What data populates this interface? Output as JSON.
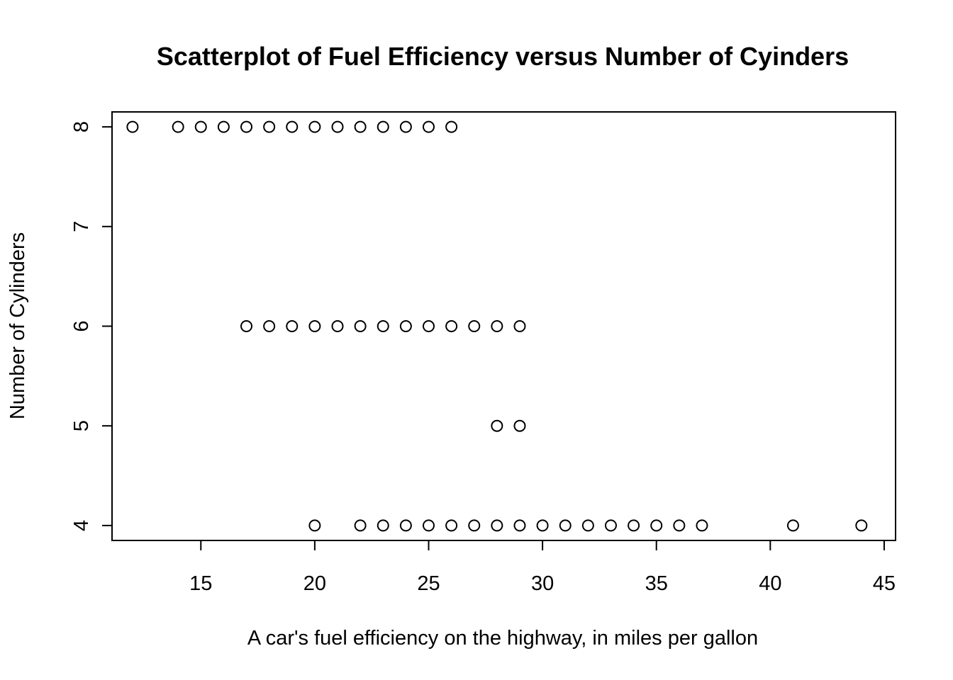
{
  "chart_data": {
    "type": "scatter",
    "title": "Scatterplot of Fuel Efficiency versus Number of Cyinders",
    "xlabel": "A car's fuel efficiency on the highway, in miles per gallon",
    "ylabel": "Number of Cylinders",
    "xlim": [
      11.1,
      45.5
    ],
    "ylim": [
      3.85,
      8.15
    ],
    "x_ticks": [
      15,
      20,
      25,
      30,
      35,
      40,
      45
    ],
    "y_ticks": [
      4,
      5,
      6,
      7,
      8
    ],
    "x_tick_labels": [
      "15",
      "20",
      "25",
      "30",
      "35",
      "40",
      "45"
    ],
    "y_tick_labels": [
      "4",
      "5",
      "6",
      "7",
      "8"
    ],
    "grid": false,
    "marker": "open-circle",
    "points": [
      {
        "x": 12,
        "y": 8
      },
      {
        "x": 14,
        "y": 8
      },
      {
        "x": 15,
        "y": 8
      },
      {
        "x": 16,
        "y": 8
      },
      {
        "x": 17,
        "y": 8
      },
      {
        "x": 18,
        "y": 8
      },
      {
        "x": 19,
        "y": 8
      },
      {
        "x": 20,
        "y": 8
      },
      {
        "x": 21,
        "y": 8
      },
      {
        "x": 22,
        "y": 8
      },
      {
        "x": 23,
        "y": 8
      },
      {
        "x": 24,
        "y": 8
      },
      {
        "x": 25,
        "y": 8
      },
      {
        "x": 26,
        "y": 8
      },
      {
        "x": 17,
        "y": 6
      },
      {
        "x": 18,
        "y": 6
      },
      {
        "x": 19,
        "y": 6
      },
      {
        "x": 20,
        "y": 6
      },
      {
        "x": 21,
        "y": 6
      },
      {
        "x": 22,
        "y": 6
      },
      {
        "x": 23,
        "y": 6
      },
      {
        "x": 24,
        "y": 6
      },
      {
        "x": 25,
        "y": 6
      },
      {
        "x": 26,
        "y": 6
      },
      {
        "x": 27,
        "y": 6
      },
      {
        "x": 28,
        "y": 6
      },
      {
        "x": 29,
        "y": 6
      },
      {
        "x": 28,
        "y": 5
      },
      {
        "x": 29,
        "y": 5
      },
      {
        "x": 20,
        "y": 4
      },
      {
        "x": 22,
        "y": 4
      },
      {
        "x": 23,
        "y": 4
      },
      {
        "x": 24,
        "y": 4
      },
      {
        "x": 25,
        "y": 4
      },
      {
        "x": 26,
        "y": 4
      },
      {
        "x": 27,
        "y": 4
      },
      {
        "x": 28,
        "y": 4
      },
      {
        "x": 29,
        "y": 4
      },
      {
        "x": 30,
        "y": 4
      },
      {
        "x": 31,
        "y": 4
      },
      {
        "x": 32,
        "y": 4
      },
      {
        "x": 33,
        "y": 4
      },
      {
        "x": 34,
        "y": 4
      },
      {
        "x": 35,
        "y": 4
      },
      {
        "x": 36,
        "y": 4
      },
      {
        "x": 37,
        "y": 4
      },
      {
        "x": 41,
        "y": 4
      },
      {
        "x": 44,
        "y": 4
      }
    ]
  }
}
